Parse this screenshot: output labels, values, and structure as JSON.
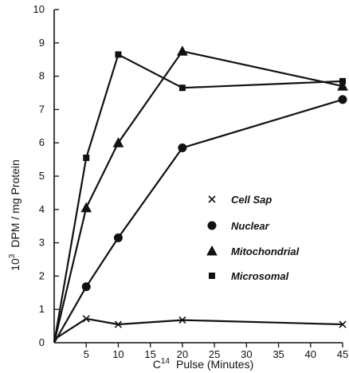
{
  "chart_data": {
    "type": "line",
    "xlabel_parts": {
      "prefix": "C",
      "superscript": "14",
      "rest": "Pulse (Minutes)"
    },
    "ylabel_parts": {
      "prefix": "10",
      "superscript": "3",
      "rest": "DPM / mg Protein"
    },
    "x_ticks": [
      5,
      10,
      15,
      20,
      25,
      30,
      35,
      40,
      45
    ],
    "y_ticks": [
      0,
      1,
      2,
      3,
      4,
      5,
      6,
      7,
      8,
      9,
      10
    ],
    "origin_label": "0",
    "xlim": [
      0,
      45
    ],
    "ylim": [
      0,
      10
    ],
    "grid": false,
    "legend_position": "center-right",
    "series": [
      {
        "name": "Cell Sap",
        "marker": "x",
        "x": [
          0,
          5,
          10,
          20,
          45
        ],
        "y": [
          0.1,
          0.72,
          0.55,
          0.68,
          0.55
        ]
      },
      {
        "name": "Nuclear",
        "marker": "circle",
        "x": [
          0,
          5,
          10,
          20,
          45
        ],
        "y": [
          0,
          1.68,
          3.15,
          5.85,
          7.3
        ]
      },
      {
        "name": "Mitochondrial",
        "marker": "triangle",
        "x": [
          0,
          5,
          10,
          20,
          45
        ],
        "y": [
          0,
          4.05,
          6.0,
          8.75,
          7.7
        ]
      },
      {
        "name": "Microsomal",
        "marker": "square",
        "x": [
          0,
          5,
          10,
          20,
          45
        ],
        "y": [
          0,
          5.55,
          8.65,
          7.65,
          7.85
        ]
      }
    ]
  }
}
